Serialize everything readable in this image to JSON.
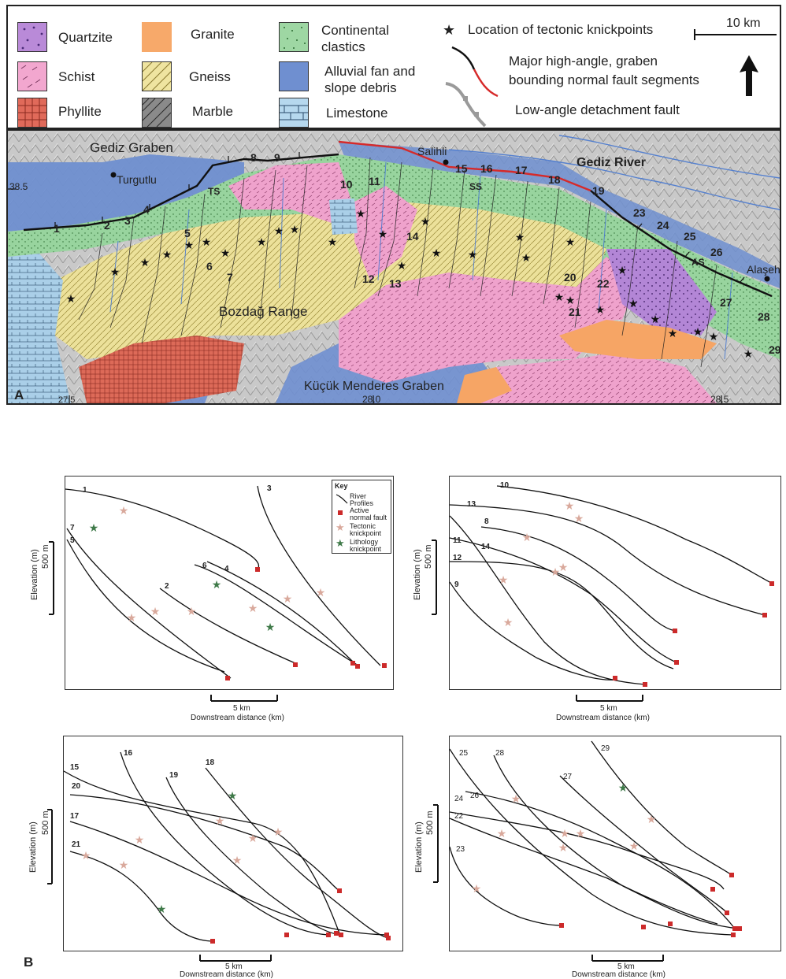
{
  "legend": {
    "items": [
      {
        "key": "quartzite",
        "label": "Quartzite",
        "color": "#b98ad8"
      },
      {
        "key": "schist",
        "label": "Schist",
        "color": "#f2a7cf"
      },
      {
        "key": "phyllite",
        "label": "Phyllite",
        "color": "#e06a5a"
      },
      {
        "key": "granite",
        "label": "Granite",
        "color": "#f7a96a"
      },
      {
        "key": "gneiss",
        "label": "Gneiss",
        "color": "#efe4a0"
      },
      {
        "key": "marble",
        "label": "Marble",
        "color": "#8a8a8a"
      },
      {
        "key": "continental",
        "label": "Continental\nclastics",
        "color": "#9ed7a3"
      },
      {
        "key": "alluvial",
        "label": "Alluvial fan and\nslope debris",
        "color": "#6f8fd0"
      },
      {
        "key": "limestone",
        "label": "Limestone",
        "color": "#b6d8ee"
      }
    ],
    "knickpoint_label": "Location of tectonic knickpoints",
    "fault_label_1": "Major high-angle, graben",
    "fault_label_2": "bounding normal fault segments",
    "detachment_label": "Low-angle detachment fault",
    "scale_label": "10 km"
  },
  "map": {
    "panel_letter": "A",
    "place_labels": {
      "gediz_graben": "Gediz Graben",
      "turgutlu": "Turgutlu",
      "salihli": "Salihli",
      "gediz_river": "Gediz River",
      "bozdag": "Bozdağ Range",
      "kucuk": "Küçük Menderes Graben",
      "alasehir": "Alaşehir",
      "ts": "TS",
      "ss": "SS",
      "as": "AS"
    },
    "coords": {
      "lat_385": "38.5",
      "lon_275": "27.5",
      "lon_280": "28.0",
      "lon_285": "28.5"
    },
    "catchment_numbers": [
      "1",
      "2",
      "3",
      "4",
      "5",
      "6",
      "7",
      "8",
      "9",
      "10",
      "11",
      "12",
      "13",
      "14",
      "15",
      "16",
      "17",
      "18",
      "19",
      "20",
      "21",
      "22",
      "23",
      "24",
      "25",
      "26",
      "27",
      "28",
      "29"
    ]
  },
  "profiles": {
    "panel_letter": "B",
    "ylabel": "Elevation (m)",
    "yscale": "500 m",
    "xscale": "5 km",
    "xlabel": "Downstream distance (km)",
    "key": {
      "title": "Key",
      "river": "River Profiles",
      "fault": "Active normal fault",
      "tectonic": "Tectonic knickpoint",
      "lithology": "Lithology knickpoint"
    },
    "panel1_labels": [
      "1",
      "3",
      "7",
      "5",
      "6",
      "4",
      "2"
    ],
    "panel2_labels": [
      "10",
      "13",
      "8",
      "11",
      "14",
      "12",
      "9"
    ],
    "panel3_labels": [
      "16",
      "15",
      "19",
      "18",
      "20",
      "17",
      "21"
    ],
    "panel4_labels": [
      "25",
      "28",
      "29",
      "26",
      "27",
      "24",
      "22",
      "23"
    ]
  },
  "colors": {
    "tectonic_star": "#d9a99c",
    "litho_star": "#3f7a49",
    "fault_square": "#cc2a2a",
    "fault_red": "#d62a2a"
  }
}
